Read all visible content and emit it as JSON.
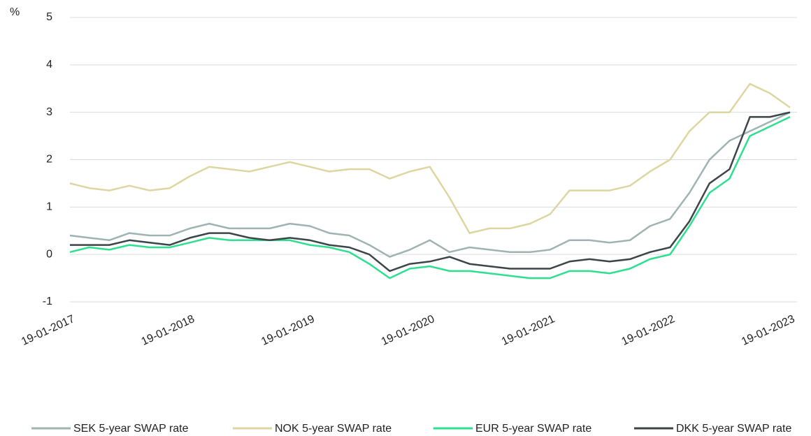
{
  "chart_data": {
    "type": "line",
    "y_unit": "%",
    "x": [
      "2017-01-19",
      "2017-03-19",
      "2017-05-19",
      "2017-07-19",
      "2017-09-19",
      "2017-11-19",
      "2018-01-19",
      "2018-03-19",
      "2018-05-19",
      "2018-07-19",
      "2018-09-19",
      "2018-11-19",
      "2019-01-19",
      "2019-03-19",
      "2019-05-19",
      "2019-07-19",
      "2019-09-19",
      "2019-11-19",
      "2020-01-19",
      "2020-03-19",
      "2020-05-19",
      "2020-07-19",
      "2020-09-19",
      "2020-11-19",
      "2021-01-19",
      "2021-03-19",
      "2021-05-19",
      "2021-07-19",
      "2021-09-19",
      "2021-11-19",
      "2022-01-19",
      "2022-03-19",
      "2022-05-19",
      "2022-07-19",
      "2022-09-19",
      "2022-11-19",
      "2023-01-19"
    ],
    "series": [
      {
        "name": "SEK 5-year SWAP rate",
        "color": "#9fb3b3",
        "values": [
          0.4,
          0.35,
          0.3,
          0.45,
          0.4,
          0.4,
          0.55,
          0.65,
          0.55,
          0.55,
          0.55,
          0.65,
          0.6,
          0.45,
          0.4,
          0.2,
          -0.05,
          0.1,
          0.3,
          0.05,
          0.15,
          0.1,
          0.05,
          0.05,
          0.1,
          0.3,
          0.3,
          0.25,
          0.3,
          0.6,
          0.75,
          1.3,
          2.0,
          2.4,
          2.6,
          2.8,
          3.0
        ]
      },
      {
        "name": "NOK 5-year SWAP rate",
        "color": "#ddd6a0",
        "values": [
          1.5,
          1.4,
          1.35,
          1.45,
          1.35,
          1.4,
          1.65,
          1.85,
          1.8,
          1.75,
          1.85,
          1.95,
          1.85,
          1.75,
          1.8,
          1.8,
          1.6,
          1.75,
          1.85,
          1.2,
          0.45,
          0.55,
          0.55,
          0.65,
          0.85,
          1.35,
          1.35,
          1.35,
          1.45,
          1.75,
          2.0,
          2.6,
          3.0,
          3.0,
          3.6,
          3.4,
          3.1
        ]
      },
      {
        "name": "EUR 5-year SWAP rate",
        "color": "#2de08f",
        "values": [
          0.05,
          0.15,
          0.1,
          0.2,
          0.15,
          0.15,
          0.25,
          0.35,
          0.3,
          0.3,
          0.3,
          0.3,
          0.2,
          0.15,
          0.05,
          -0.2,
          -0.5,
          -0.3,
          -0.25,
          -0.35,
          -0.35,
          -0.4,
          -0.45,
          -0.5,
          -0.5,
          -0.35,
          -0.35,
          -0.4,
          -0.3,
          -0.1,
          0.0,
          0.6,
          1.3,
          1.6,
          2.5,
          2.7,
          2.9
        ]
      },
      {
        "name": "DKK 5-year SWAP rate",
        "color": "#3d4549",
        "values": [
          0.2,
          0.2,
          0.2,
          0.3,
          0.25,
          0.2,
          0.35,
          0.45,
          0.45,
          0.35,
          0.3,
          0.35,
          0.3,
          0.2,
          0.15,
          0.0,
          -0.35,
          -0.2,
          -0.15,
          -0.05,
          -0.2,
          -0.25,
          -0.3,
          -0.3,
          -0.3,
          -0.15,
          -0.1,
          -0.15,
          -0.1,
          0.05,
          0.15,
          0.7,
          1.5,
          1.8,
          2.9,
          2.9,
          3.0
        ]
      }
    ],
    "xlim": [
      "2017-01-19",
      "2023-01-19"
    ],
    "xticks": [
      {
        "value": "2017-01-19",
        "label": "19-01-2017"
      },
      {
        "value": "2018-01-19",
        "label": "19-01-2018"
      },
      {
        "value": "2019-01-19",
        "label": "19-01-2019"
      },
      {
        "value": "2020-01-19",
        "label": "19-01-2020"
      },
      {
        "value": "2021-01-19",
        "label": "19-01-2021"
      },
      {
        "value": "2022-01-19",
        "label": "19-01-2022"
      },
      {
        "value": "2023-01-19",
        "label": "19-01-2023"
      }
    ],
    "ylim": [
      -1,
      5
    ],
    "yticks": [
      -1,
      0,
      1,
      2,
      3,
      4,
      5
    ],
    "grid": true,
    "legend": "bottom"
  }
}
